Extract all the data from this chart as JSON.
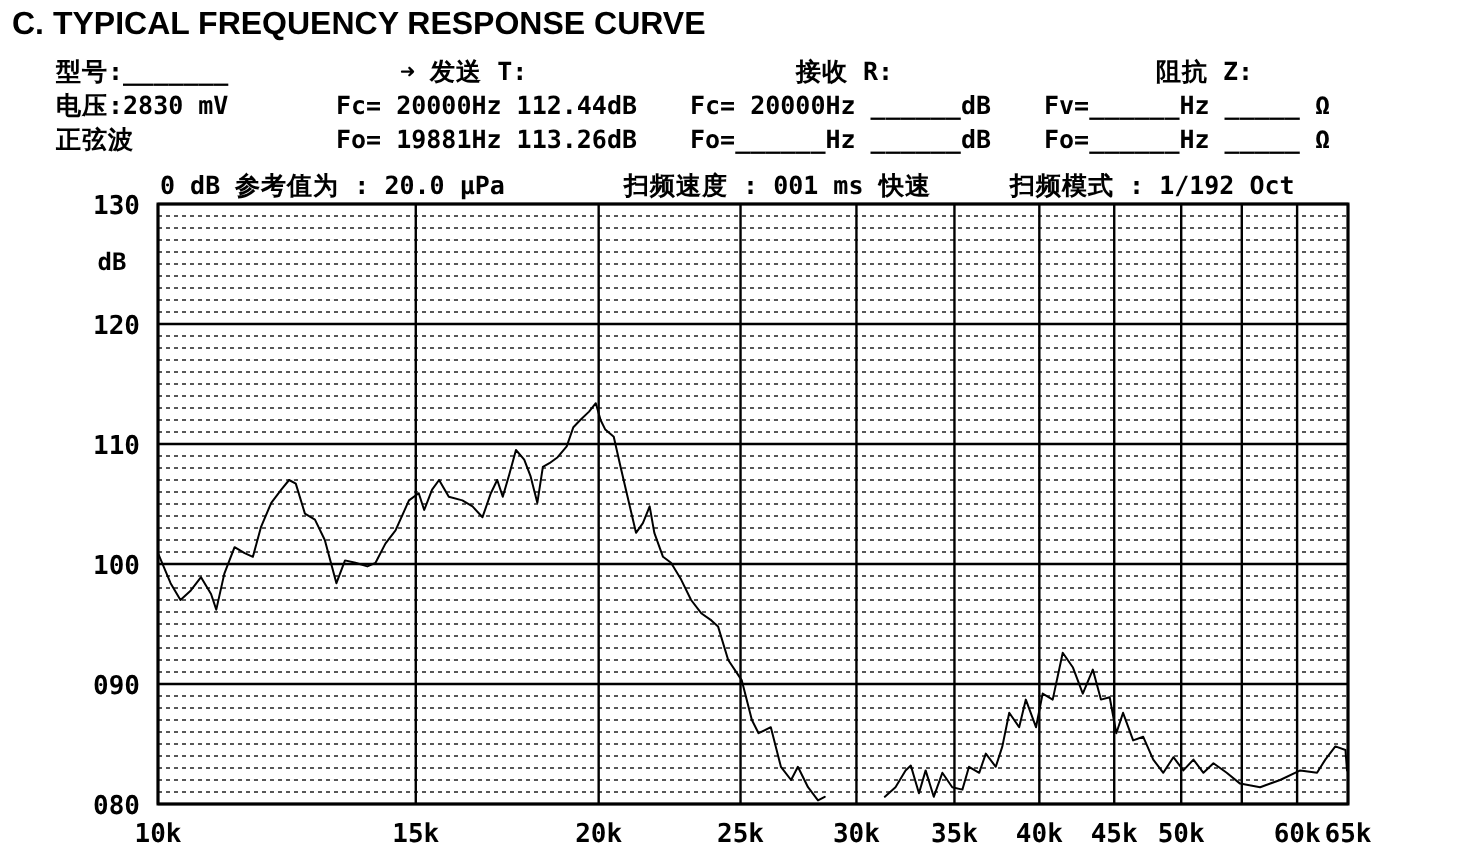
{
  "chart_data": {
    "type": "line",
    "title": "C. TYPICAL FREQUENCY RESPONSE CURVE",
    "ylabel": "dB",
    "annotations": [
      "型号:_______",
      "➜ 发送 T:",
      "接收 R:",
      "阻抗 Z:",
      "电压:2830 mV",
      "Fc= 20000Hz 112.44dB",
      "Fc= 20000Hz ______dB",
      "Fv=______Hz _____ Ω",
      "正弦波",
      "Fo= 19881Hz 113.26dB",
      "Fo=______Hz ______dB",
      "Fo=______Hz _____ Ω",
      "0 dB 参考值为 : 20.0 μPa",
      "扫频速度 : 001 ms 快速",
      "扫频模式 : 1/192 Oct"
    ],
    "x": [
      10000,
      10200,
      10360,
      10530,
      10700,
      10870,
      10960,
      11100,
      11280,
      11460,
      11610,
      11760,
      11950,
      12140,
      12290,
      12420,
      12600,
      12800,
      13000,
      13240,
      13420,
      13640,
      13900,
      14080,
      14300,
      14530,
      14840,
      15070,
      15200,
      15390,
      15560,
      15800,
      16140,
      16400,
      16660,
      16880,
      17050,
      17200,
      17380,
      17560,
      17790,
      17970,
      18160,
      18320,
      18510,
      18750,
      19020,
      19220,
      19430,
      19700,
      19910,
      20060,
      20210,
      20480,
      20700,
      20930,
      21210,
      21440,
      21670,
      21830,
      22130,
      22410,
      22770,
      23130,
      23500,
      23880,
      24130,
      24520,
      25050,
      25450,
      25720,
      26220,
      26640,
      27070,
      27360,
      27800,
      28240,
      28540,
      31370,
      31900,
      32410,
      32680,
      33100,
      33450,
      33880,
      34340,
      34880,
      35440,
      35810,
      36390,
      36770,
      37350,
      37740,
      38150,
      38750,
      39160,
      39790,
      40210,
      40850,
      41500,
      42160,
      42830,
      43510,
      44070,
      44680,
      45150,
      45630,
      46360,
      47100,
      47850,
      48610,
      49390,
      50170,
      50970,
      51780,
      52600,
      53710,
      54850,
      56610,
      58420,
      60300,
      61910,
      62720,
      63720,
      64740,
      64900
    ],
    "series": [
      {
        "color": "#000000",
        "values": [
          100.9,
          98.4,
          97.0,
          97.8,
          98.9,
          97.5,
          96.2,
          99.2,
          101.4,
          100.9,
          100.6,
          103.1,
          105.1,
          106.2,
          107.0,
          106.7,
          104.2,
          103.7,
          102.0,
          98.4,
          100.3,
          100.1,
          99.8,
          100.1,
          101.7,
          102.8,
          105.3,
          105.9,
          104.5,
          106.2,
          107.0,
          105.6,
          105.3,
          104.8,
          103.9,
          105.9,
          107.0,
          105.6,
          107.5,
          109.5,
          108.7,
          107.3,
          105.1,
          108.1,
          108.4,
          108.9,
          109.8,
          111.4,
          112.0,
          112.7,
          113.4,
          112.0,
          111.2,
          110.6,
          108.1,
          105.6,
          102.6,
          103.4,
          104.8,
          102.6,
          100.6,
          100.1,
          98.7,
          97.0,
          95.9,
          95.3,
          94.8,
          92.0,
          90.3,
          87.0,
          85.9,
          86.4,
          83.1,
          82.0,
          83.1,
          81.4,
          80.3,
          80.6,
          80.6,
          81.4,
          82.8,
          83.2,
          80.9,
          82.8,
          80.6,
          82.6,
          81.4,
          81.2,
          83.1,
          82.6,
          84.2,
          83.1,
          84.8,
          87.6,
          86.4,
          88.7,
          86.4,
          89.2,
          88.7,
          92.6,
          91.4,
          89.2,
          91.2,
          88.7,
          88.9,
          85.9,
          87.6,
          85.3,
          85.6,
          83.7,
          82.6,
          83.9,
          82.8,
          83.7,
          82.6,
          83.4,
          82.6,
          81.7,
          81.4,
          82.0,
          82.8,
          82.6,
          83.7,
          84.8,
          84.5,
          82.8
        ]
      }
    ],
    "log": "x",
    "xlim": [
      10000,
      65000
    ],
    "ylim": [
      80,
      130
    ],
    "xticks": [
      {
        "value": 10000,
        "label": "10k"
      },
      {
        "value": 15000,
        "label": "15k"
      },
      {
        "value": 20000,
        "label": "20k"
      },
      {
        "value": 25000,
        "label": "25k"
      },
      {
        "value": 30000,
        "label": "30k"
      },
      {
        "value": 35000,
        "label": "35k"
      },
      {
        "value": 40000,
        "label": "40k"
      },
      {
        "value": 45000,
        "label": "45k"
      },
      {
        "value": 50000,
        "label": "50k"
      },
      {
        "value": 55000,
        "label": null
      },
      {
        "value": 60000,
        "label": "60k"
      },
      {
        "value": 65000,
        "label": "65k"
      }
    ],
    "yticks": [
      130,
      120,
      110,
      100,
      {
        "value": 90,
        "label": "090"
      },
      {
        "value": 80,
        "label": "080"
      }
    ],
    "grid": true
  }
}
